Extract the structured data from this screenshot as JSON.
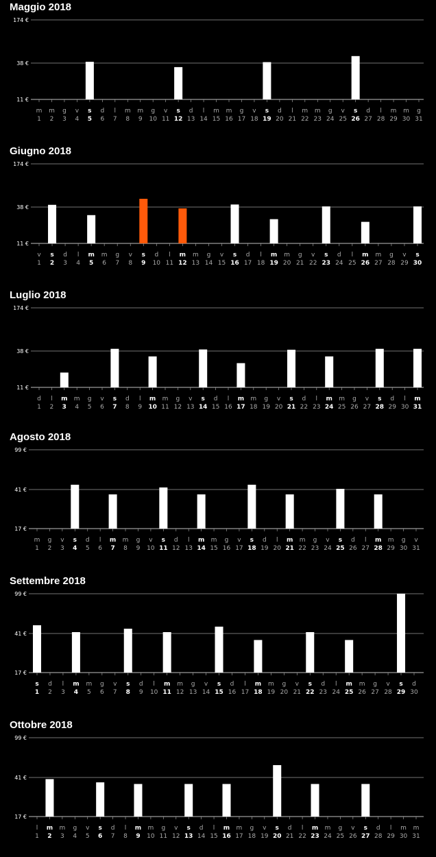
{
  "colors": {
    "background": "#000000",
    "bar": "#ffffff",
    "bar_selected": "#ff5a0a",
    "grid": "#9a9a9a"
  },
  "chart_data": [
    {
      "type": "bar",
      "title": "Maggio 2018",
      "yticks": [
        "174 €",
        "38 €",
        "11 €"
      ],
      "ylim": [
        11,
        174
      ],
      "tick_values": [
        11,
        38,
        174
      ],
      "first_weekday": 2,
      "days_count": 31,
      "bold_days": [
        5,
        12,
        19,
        26
      ],
      "values": [
        {
          "day": 5,
          "value": 42
        },
        {
          "day": 12,
          "value": 35
        },
        {
          "day": 19,
          "value": 41
        },
        {
          "day": 26,
          "value": 60
        }
      ],
      "selected_days": []
    },
    {
      "type": "bar",
      "title": "Giugno 2018",
      "yticks": [
        "174 €",
        "38 €",
        "11 €"
      ],
      "ylim": [
        11,
        174
      ],
      "tick_values": [
        11,
        38,
        174
      ],
      "first_weekday": 5,
      "days_count": 30,
      "bold_days": [
        2,
        5,
        9,
        12,
        16,
        19,
        23,
        26,
        30
      ],
      "values": [
        {
          "day": 2,
          "value": 45
        },
        {
          "day": 5,
          "value": 32
        },
        {
          "day": 9,
          "value": 64
        },
        {
          "day": 12,
          "value": 37
        },
        {
          "day": 16,
          "value": 46
        },
        {
          "day": 19,
          "value": 29
        },
        {
          "day": 23,
          "value": 40
        },
        {
          "day": 26,
          "value": 27
        },
        {
          "day": 30,
          "value": 40
        }
      ],
      "selected_days": [
        9,
        12
      ]
    },
    {
      "type": "bar",
      "title": "Luglio 2018",
      "yticks": [
        "174 €",
        "38 €",
        "11 €"
      ],
      "ylim": [
        11,
        174
      ],
      "tick_values": [
        11,
        38,
        174
      ],
      "first_weekday": 0,
      "days_count": 31,
      "bold_days": [
        3,
        7,
        10,
        14,
        17,
        21,
        24,
        28,
        31
      ],
      "values": [
        {
          "day": 3,
          "value": 22
        },
        {
          "day": 7,
          "value": 45
        },
        {
          "day": 10,
          "value": 34
        },
        {
          "day": 14,
          "value": 43
        },
        {
          "day": 17,
          "value": 29
        },
        {
          "day": 21,
          "value": 42
        },
        {
          "day": 24,
          "value": 34
        },
        {
          "day": 28,
          "value": 45
        },
        {
          "day": 31,
          "value": 45
        }
      ],
      "selected_days": []
    },
    {
      "type": "bar",
      "title": "Agosto 2018",
      "yticks": [
        "99 €",
        "41 €",
        "17 €"
      ],
      "ylim": [
        17,
        99
      ],
      "tick_values": [
        17,
        41,
        99
      ],
      "first_weekday": 3,
      "days_count": 31,
      "bold_days": [
        4,
        7,
        11,
        14,
        18,
        21,
        25,
        28
      ],
      "values": [
        {
          "day": 4,
          "value": 48
        },
        {
          "day": 7,
          "value": 38
        },
        {
          "day": 11,
          "value": 44
        },
        {
          "day": 14,
          "value": 38
        },
        {
          "day": 18,
          "value": 48
        },
        {
          "day": 21,
          "value": 38
        },
        {
          "day": 25,
          "value": 42
        },
        {
          "day": 28,
          "value": 38
        }
      ],
      "selected_days": []
    },
    {
      "type": "bar",
      "title": "Settembre 2018",
      "yticks": [
        "99 €",
        "41 €",
        "17 €"
      ],
      "ylim": [
        17,
        99
      ],
      "tick_values": [
        17,
        41,
        99
      ],
      "first_weekday": 6,
      "days_count": 30,
      "bold_days": [
        1,
        4,
        8,
        11,
        15,
        18,
        22,
        25,
        29
      ],
      "values": [
        {
          "day": 1,
          "value": 53
        },
        {
          "day": 4,
          "value": 43
        },
        {
          "day": 8,
          "value": 48
        },
        {
          "day": 11,
          "value": 43
        },
        {
          "day": 15,
          "value": 51
        },
        {
          "day": 18,
          "value": 37
        },
        {
          "day": 22,
          "value": 43
        },
        {
          "day": 25,
          "value": 37
        },
        {
          "day": 29,
          "value": 99
        }
      ],
      "selected_days": []
    },
    {
      "type": "bar",
      "title": "Ottobre 2018",
      "yticks": [
        "99 €",
        "41 €",
        "17 €"
      ],
      "ylim": [
        17,
        99
      ],
      "tick_values": [
        17,
        41,
        99
      ],
      "first_weekday": 1,
      "days_count": 31,
      "bold_days": [
        2,
        6,
        9,
        13,
        16,
        20,
        23,
        27
      ],
      "values": [
        {
          "day": 2,
          "value": 40
        },
        {
          "day": 6,
          "value": 38
        },
        {
          "day": 9,
          "value": 37
        },
        {
          "day": 13,
          "value": 37
        },
        {
          "day": 16,
          "value": 37
        },
        {
          "day": 20,
          "value": 59
        },
        {
          "day": 23,
          "value": 37
        },
        {
          "day": 27,
          "value": 37
        }
      ],
      "selected_days": []
    }
  ],
  "weekday_letters": [
    "d",
    "l",
    "m",
    "m",
    "g",
    "v",
    "s"
  ]
}
